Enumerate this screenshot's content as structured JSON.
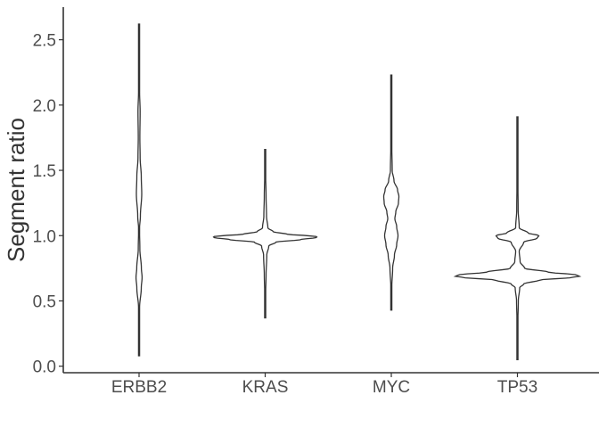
{
  "chart_data": {
    "type": "violin",
    "ylabel": "Segment ratio",
    "xlabel": "",
    "ylim": [
      -0.05,
      2.75
    ],
    "yticks": [
      "0.0",
      "0.5",
      "1.0",
      "1.5",
      "2.0",
      "2.5"
    ],
    "grid": false,
    "categories": [
      "ERBB2",
      "KRAS",
      "MYC",
      "TP53"
    ],
    "violins": [
      {
        "category": "ERBB2",
        "range": [
          0.08,
          2.62
        ],
        "profile": [
          [
            0.08,
            0.1
          ],
          [
            0.3,
            0.2
          ],
          [
            0.45,
            0.6
          ],
          [
            0.6,
            2.5
          ],
          [
            0.68,
            3.4
          ],
          [
            0.75,
            2.6
          ],
          [
            0.9,
            0.9
          ],
          [
            1.05,
            0.5
          ],
          [
            1.15,
            1.5
          ],
          [
            1.32,
            3.0
          ],
          [
            1.45,
            2.5
          ],
          [
            1.6,
            1.2
          ],
          [
            1.75,
            0.9
          ],
          [
            1.95,
            1.2
          ],
          [
            2.1,
            0.6
          ],
          [
            2.3,
            0.2
          ],
          [
            2.62,
            0.1
          ]
        ],
        "max_halfwidth": 1.0
      },
      {
        "category": "KRAS",
        "range": [
          0.37,
          1.66
        ],
        "profile": [
          [
            0.37,
            0.1
          ],
          [
            0.55,
            0.5
          ],
          [
            0.7,
            1.0
          ],
          [
            0.85,
            1.8
          ],
          [
            0.92,
            4
          ],
          [
            0.95,
            12
          ],
          [
            0.97,
            40
          ],
          [
            0.985,
            57
          ],
          [
            0.99,
            58
          ],
          [
            0.995,
            57
          ],
          [
            1.0,
            45
          ],
          [
            1.01,
            25
          ],
          [
            1.03,
            9
          ],
          [
            1.06,
            3
          ],
          [
            1.15,
            1.5
          ],
          [
            1.3,
            1.0
          ],
          [
            1.5,
            0.4
          ],
          [
            1.66,
            0.1
          ]
        ],
        "max_halfwidth": 1.0
      },
      {
        "category": "MYC",
        "range": [
          0.43,
          2.23
        ],
        "profile": [
          [
            0.43,
            0.1
          ],
          [
            0.6,
            0.5
          ],
          [
            0.75,
            1.5
          ],
          [
            0.85,
            3.5
          ],
          [
            0.93,
            6.0
          ],
          [
            1.0,
            7.5
          ],
          [
            1.07,
            6.0
          ],
          [
            1.13,
            4.0
          ],
          [
            1.18,
            5.0
          ],
          [
            1.25,
            8.0
          ],
          [
            1.3,
            8.5
          ],
          [
            1.35,
            7.0
          ],
          [
            1.42,
            3.0
          ],
          [
            1.5,
            1.0
          ],
          [
            1.7,
            0.5
          ],
          [
            2.0,
            0.3
          ],
          [
            2.23,
            0.1
          ]
        ],
        "max_halfwidth": 1.0
      },
      {
        "category": "TP53",
        "range": [
          0.05,
          1.91
        ],
        "profile": [
          [
            0.05,
            0.1
          ],
          [
            0.3,
            0.3
          ],
          [
            0.5,
            1.0
          ],
          [
            0.6,
            2.5
          ],
          [
            0.63,
            7
          ],
          [
            0.66,
            25
          ],
          [
            0.68,
            62
          ],
          [
            0.69,
            70
          ],
          [
            0.7,
            65
          ],
          [
            0.72,
            35
          ],
          [
            0.75,
            8
          ],
          [
            0.8,
            3
          ],
          [
            0.88,
            2
          ],
          [
            0.95,
            7
          ],
          [
            0.98,
            22
          ],
          [
            1.0,
            24
          ],
          [
            1.02,
            12
          ],
          [
            1.06,
            2
          ],
          [
            1.2,
            0.8
          ],
          [
            1.5,
            0.3
          ],
          [
            1.91,
            0.1
          ]
        ],
        "max_halfwidth": 1.0
      }
    ]
  }
}
